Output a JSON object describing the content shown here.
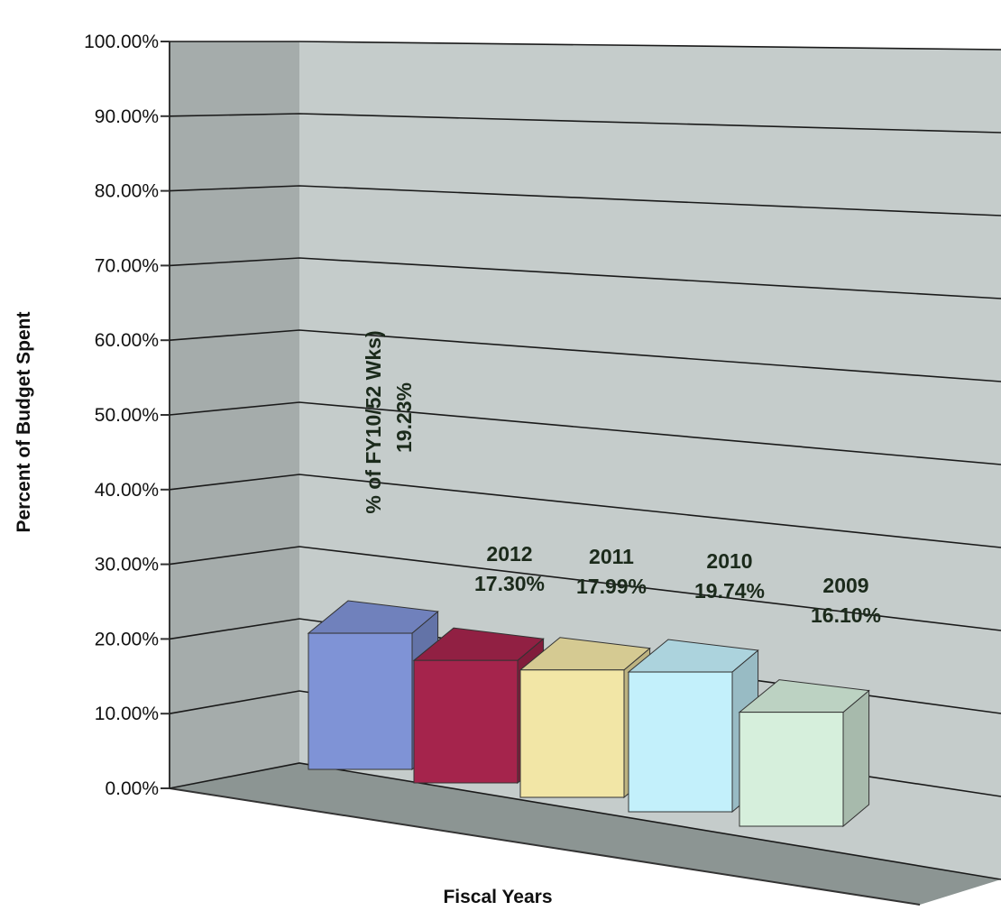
{
  "chart_data": {
    "type": "bar",
    "title": "",
    "xlabel": "Fiscal Years",
    "ylabel": "Percent of Budget Spent",
    "ylim": [
      0,
      100
    ],
    "y_ticks": [
      "0.00%",
      "10.00%",
      "20.00%",
      "30.00%",
      "40.00%",
      "50.00%",
      "60.00%",
      "70.00%",
      "80.00%",
      "90.00%",
      "100.00%"
    ],
    "grid": true,
    "three_d": true,
    "bars": [
      {
        "label": "% of FY10/52 Wks)",
        "value_label": "19.23%",
        "value": 19.23,
        "color": "#7f93d6"
      },
      {
        "label": "2012",
        "value_label": "17.30%",
        "value": 17.3,
        "color": "#a5244c"
      },
      {
        "label": "2011",
        "value_label": "17.99%",
        "value": 17.99,
        "color": "#f2e6a6"
      },
      {
        "label": "2010",
        "value_label": "19.74%",
        "value": 19.74,
        "color": "#c3f0fb"
      },
      {
        "label": "2009",
        "value_label": "16.10%",
        "value": 16.1,
        "color": "#d6efdc"
      }
    ]
  }
}
